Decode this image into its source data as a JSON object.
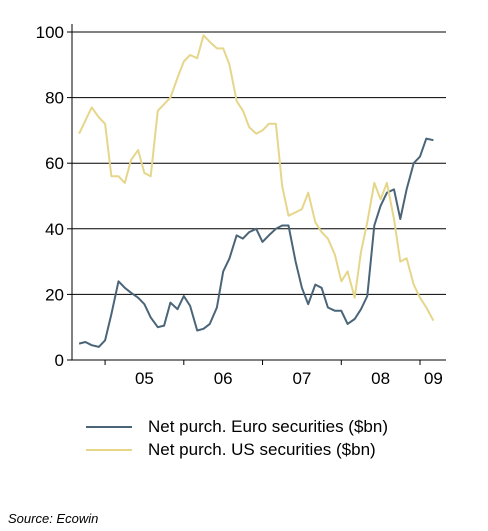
{
  "chart_data": {
    "type": "line",
    "title": "",
    "xlabel": "",
    "ylabel": "",
    "ylim": [
      0,
      100
    ],
    "y_ticks": [
      0,
      20,
      40,
      60,
      80,
      100
    ],
    "x_range": [
      2004.58,
      2009.33
    ],
    "x_ticks": [
      {
        "label": "05",
        "value": 2005.5
      },
      {
        "label": "06",
        "value": 2006.5
      },
      {
        "label": "07",
        "value": 2007.5
      },
      {
        "label": "08",
        "value": 2008.5
      },
      {
        "label": "09",
        "value": 2009.17
      }
    ],
    "grid": "horizontal",
    "legend_position": "bottom",
    "series": [
      {
        "name": "Net purch. Euro securities ($bn)",
        "color": "#4a6478",
        "x": [
          2004.67,
          2004.75,
          2004.83,
          2004.92,
          2005.0,
          2005.08,
          2005.17,
          2005.25,
          2005.33,
          2005.42,
          2005.5,
          2005.58,
          2005.67,
          2005.75,
          2005.83,
          2005.92,
          2006.0,
          2006.08,
          2006.17,
          2006.25,
          2006.33,
          2006.42,
          2006.5,
          2006.58,
          2006.67,
          2006.75,
          2006.83,
          2006.92,
          2007.0,
          2007.08,
          2007.17,
          2007.25,
          2007.33,
          2007.42,
          2007.5,
          2007.58,
          2007.67,
          2007.75,
          2007.83,
          2007.92,
          2008.0,
          2008.08,
          2008.17,
          2008.25,
          2008.33,
          2008.42,
          2008.5,
          2008.58,
          2008.67,
          2008.75,
          2008.83,
          2008.92,
          2009.0,
          2009.08,
          2009.17
        ],
        "values": [
          5,
          5.5,
          4.5,
          4,
          6,
          14,
          24,
          22,
          20.5,
          19,
          17,
          13,
          10,
          10.5,
          17.5,
          15.5,
          19.5,
          16.5,
          9,
          9.5,
          11,
          16,
          27,
          31,
          38,
          37,
          39,
          40,
          36,
          38,
          40,
          41,
          41,
          30,
          22,
          17,
          23,
          22,
          16,
          15,
          15,
          11,
          12.5,
          15.5,
          19.5,
          41,
          47,
          51,
          52,
          43,
          52,
          60,
          62,
          67.5,
          67
        ]
      },
      {
        "name": "Net purch. US securities ($bn)",
        "color": "#e6d68a",
        "x": [
          2004.67,
          2004.75,
          2004.83,
          2004.92,
          2005.0,
          2005.08,
          2005.17,
          2005.25,
          2005.33,
          2005.42,
          2005.5,
          2005.58,
          2005.67,
          2005.75,
          2005.83,
          2005.92,
          2006.0,
          2006.08,
          2006.17,
          2006.25,
          2006.33,
          2006.42,
          2006.5,
          2006.58,
          2006.67,
          2006.75,
          2006.83,
          2006.92,
          2007.0,
          2007.08,
          2007.17,
          2007.25,
          2007.33,
          2007.42,
          2007.5,
          2007.58,
          2007.67,
          2007.75,
          2007.83,
          2007.92,
          2008.0,
          2008.08,
          2008.17,
          2008.25,
          2008.33,
          2008.42,
          2008.5,
          2008.58,
          2008.67,
          2008.75,
          2008.83,
          2008.92,
          2009.0,
          2009.08,
          2009.17
        ],
        "values": [
          69,
          73,
          77,
          74,
          72,
          56,
          56,
          54,
          61,
          64,
          57,
          56,
          76,
          78,
          80,
          86,
          91,
          93,
          92,
          99,
          97,
          95,
          95,
          90,
          79,
          76,
          71,
          69,
          70,
          72,
          72,
          53,
          44,
          45,
          46,
          51,
          42,
          39,
          37,
          32,
          24,
          27,
          19,
          33,
          42,
          54,
          49,
          54,
          43,
          30,
          31,
          23,
          19,
          16,
          12
        ]
      }
    ],
    "source": "Source: Ecowin"
  }
}
